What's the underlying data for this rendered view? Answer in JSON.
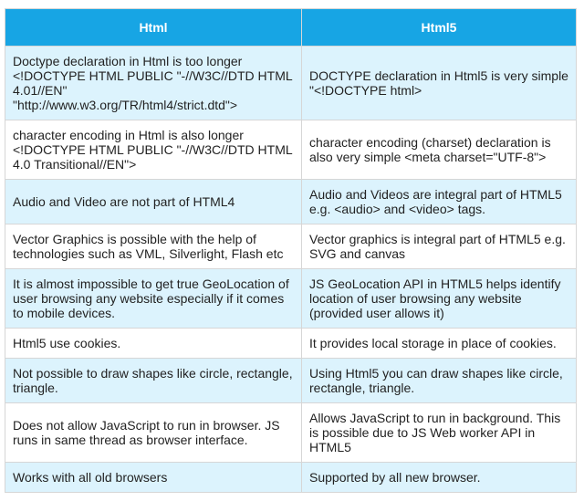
{
  "table": {
    "headers": [
      "Html",
      "Html5"
    ],
    "rows": [
      [
        "Doctype declaration in Html is too longer <!DOCTYPE HTML PUBLIC \"-//W3C//DTD HTML 4.01//EN\" \"http://www.w3.org/TR/html4/strict.dtd\">",
        "DOCTYPE declaration in Html5 is very simple \"<!DOCTYPE html>"
      ],
      [
        "character encoding in Html is also longer <!DOCTYPE HTML PUBLIC \"-//W3C//DTD HTML 4.0 Transitional//EN\">",
        "character encoding (charset) declaration is also very simple <meta charset=\"UTF-8\">"
      ],
      [
        "Audio and Video are not part of HTML4",
        "Audio and Videos are integral part of HTML5 e.g. <audio> and <video> tags."
      ],
      [
        "Vector Graphics is possible with the help of technologies such as VML, Silverlight, Flash etc",
        "Vector graphics is integral part of HTML5 e.g. SVG and canvas"
      ],
      [
        "It is almost impossible to get true GeoLocation of user browsing any website especially if it comes to mobile devices.",
        "JS GeoLocation API in HTML5 helps identify location of user browsing any website (provided user allows it)"
      ],
      [
        "Html5 use cookies.",
        "It provides local storage in place of cookies."
      ],
      [
        "Not possible to draw shapes like circle, rectangle, triangle.",
        "Using Html5 you can draw shapes like circle, rectangle, triangle."
      ],
      [
        "Does not allow JavaScript to run in browser. JS runs in same thread as browser interface.",
        "Allows JavaScript to run in background. This is possible due to JS Web worker API in HTML5"
      ],
      [
        "Works with all old browsers",
        "Supported by all new browser."
      ]
    ]
  }
}
